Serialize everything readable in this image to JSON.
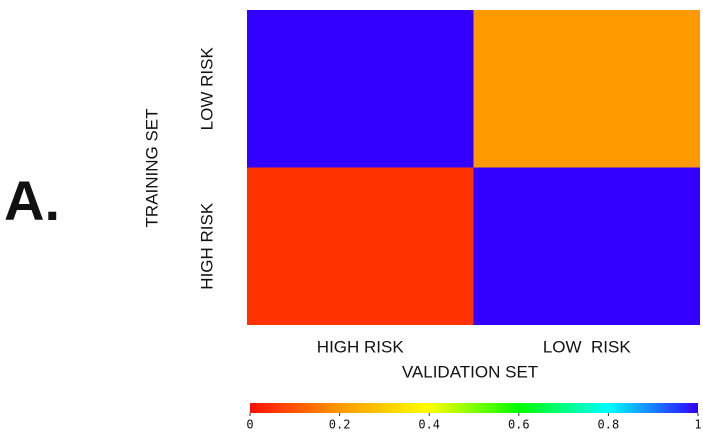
{
  "chart_data": {
    "type": "heatmap",
    "panel_label": "A.",
    "y_label": "TRAINING SET",
    "x_label": "VALIDATION SET",
    "rows": [
      "LOW RISK",
      "HIGH RISK"
    ],
    "columns": [
      "HIGH RISK",
      "LOW  RISK"
    ],
    "values": [
      [
        1,
        0.2
      ],
      [
        0.05,
        1
      ]
    ],
    "colorscale": [
      "#ff1000",
      "#ff9900",
      "#ffff00",
      "#00ff00",
      "#00ffff",
      "#3300ff"
    ],
    "zlim": [
      0,
      1
    ],
    "colorbar_ticks": [
      0,
      0.2,
      0.4,
      0.6,
      0.8,
      1
    ],
    "panel_label_color": "#f5b800"
  }
}
